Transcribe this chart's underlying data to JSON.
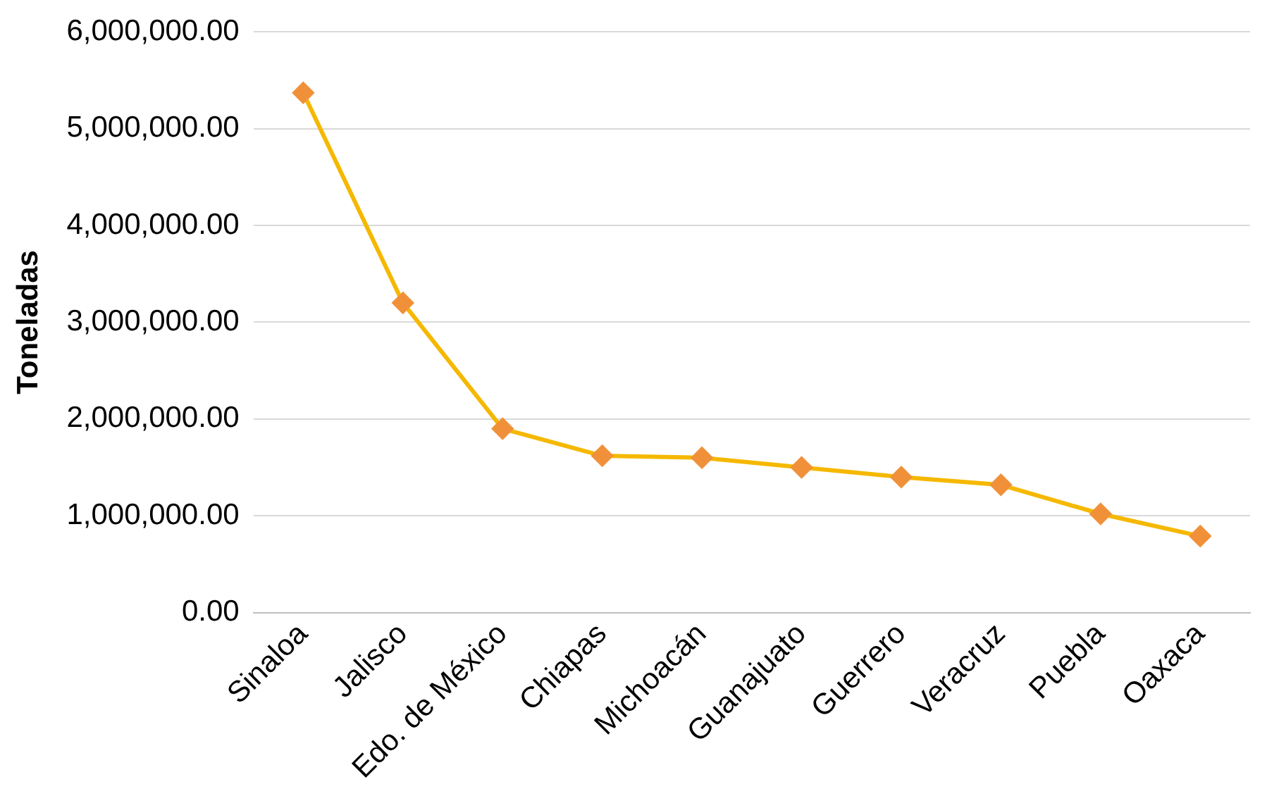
{
  "chart_data": {
    "type": "line",
    "ylabel": "Toneladas",
    "categories": [
      "Sinaloa",
      "Jalisco",
      "Edo. de México",
      "Chiapas",
      "Michoacán",
      "Guanajuato",
      "Guerrero",
      "Veracruz",
      "Puebla",
      "Oaxaca"
    ],
    "series": [
      {
        "color": "#f5b800",
        "colors": [
          "#f0913a",
          "#f0913a",
          "#f0913a",
          "#f0913a",
          "#f0913a",
          "#f0913a",
          "#f0913a",
          "#f0913a",
          "#f0913a",
          "#f0913a"
        ],
        "values": [
          5370000,
          3200000,
          1900000,
          1620000,
          1600000,
          1500000,
          1400000,
          1320000,
          1020000,
          790000
        ]
      }
    ],
    "ylim": [
      0,
      6000000
    ],
    "yticks": [
      {
        "value": 0,
        "label": "0.00"
      },
      {
        "value": 1000000,
        "label": "1,000,000.00"
      },
      {
        "value": 2000000,
        "label": "2,000,000.00"
      },
      {
        "value": 3000000,
        "label": "3,000,000.00"
      },
      {
        "value": 4000000,
        "label": "4,000,000.00"
      },
      {
        "value": 5000000,
        "label": "5,000,000.00"
      },
      {
        "value": 6000000,
        "label": "6,000,000.00"
      }
    ],
    "grid": "y",
    "legend": false,
    "marker": "diamond",
    "line_style": "solid"
  }
}
